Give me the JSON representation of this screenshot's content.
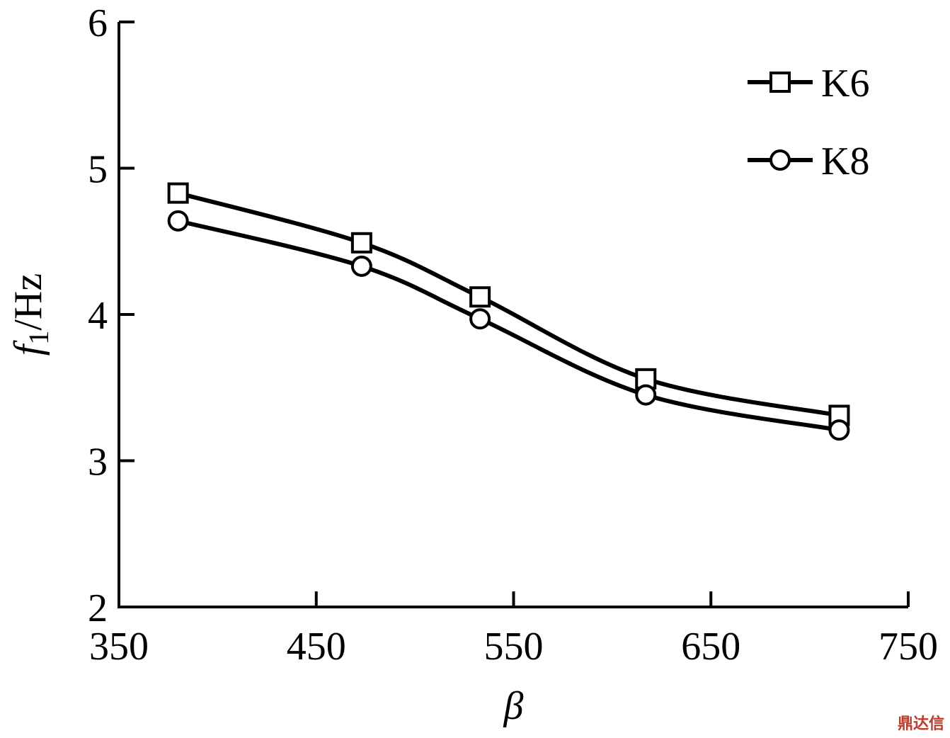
{
  "chart_data": {
    "type": "line",
    "x_label": "β",
    "y_label": {
      "symbol": "f",
      "subscript": "1",
      "unit": "/Hz"
    },
    "xlim": [
      350,
      750
    ],
    "ylim": [
      2,
      6
    ],
    "x_ticks": [
      350,
      450,
      550,
      650,
      750
    ],
    "y_ticks": [
      2,
      3,
      4,
      5,
      6
    ],
    "grid": false,
    "legend_position": "top-right",
    "series": [
      {
        "name": "K6",
        "marker": "square",
        "x": [
          380,
          473,
          533,
          617,
          715
        ],
        "y": [
          4.83,
          4.49,
          4.12,
          3.56,
          3.31
        ]
      },
      {
        "name": "K8",
        "marker": "circle",
        "x": [
          380,
          473,
          533,
          617,
          715
        ],
        "y": [
          4.64,
          4.33,
          3.97,
          3.45,
          3.21
        ]
      }
    ]
  },
  "watermark": "鼎达信",
  "colors": {
    "line": "#000000",
    "marker_fill": "#ffffff",
    "watermark": "#c0392b"
  }
}
